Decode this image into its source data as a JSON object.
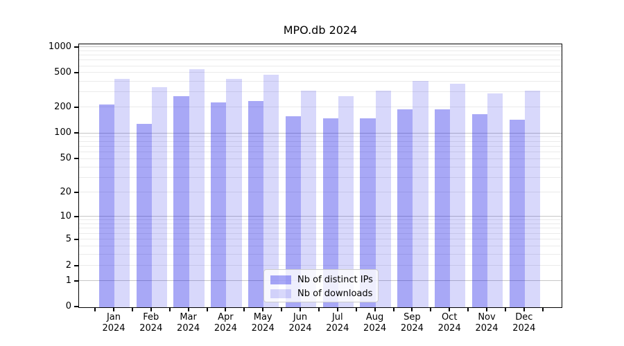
{
  "title": "MPO.db 2024",
  "colors": {
    "ips_bar": "rgba(13,13,230,0.36)",
    "downloads_bar": "rgba(13,13,230,0.16)",
    "grid_major": "#c6c6c6",
    "grid_minor": "#eaeaea",
    "axis": "#000000",
    "legend_border": "#cccccc",
    "legend_bg": "rgba(255,255,255,0.8)"
  },
  "y_axis": {
    "tick_labels": [
      "1000",
      "500",
      "200",
      "100",
      "50",
      "20",
      "10",
      "5",
      "2",
      "1",
      "0"
    ],
    "tick_values": [
      1000,
      500,
      200,
      100,
      50,
      20,
      10,
      5,
      2,
      1,
      0
    ],
    "major_grid_values": [
      1,
      10,
      100,
      1000
    ],
    "minor_grid_values": [
      2,
      3,
      4,
      5,
      6,
      7,
      8,
      9,
      20,
      30,
      40,
      50,
      60,
      70,
      80,
      90,
      200,
      300,
      400,
      500,
      600,
      700,
      800,
      900
    ]
  },
  "x_axis": {
    "months": [
      "Jan",
      "Feb",
      "Mar",
      "Apr",
      "May",
      "Jun",
      "Jul",
      "Aug",
      "Sep",
      "Oct",
      "Nov",
      "Dec"
    ],
    "year": "2024"
  },
  "legend": {
    "items": [
      {
        "label": "Nb of distinct IPs"
      },
      {
        "label": "Nb of downloads"
      }
    ]
  },
  "chart_data": {
    "type": "bar",
    "title": "MPO.db 2024",
    "categories": [
      "Jan 2024",
      "Feb 2024",
      "Mar 2024",
      "Apr 2024",
      "May 2024",
      "Jun 2024",
      "Jul 2024",
      "Aug 2024",
      "Sep 2024",
      "Oct 2024",
      "Nov 2024",
      "Dec 2024"
    ],
    "series": [
      {
        "name": "Nb of distinct IPs",
        "values": [
          220,
          130,
          270,
          230,
          240,
          160,
          152,
          152,
          193,
          190,
          168,
          145
        ]
      },
      {
        "name": "Nb of downloads",
        "values": [
          430,
          343,
          563,
          430,
          478,
          315,
          272,
          315,
          406,
          382,
          291,
          318
        ]
      }
    ],
    "yscale": "log10(1+x)",
    "yticks": [
      0,
      1,
      2,
      5,
      10,
      20,
      50,
      100,
      200,
      500,
      1000
    ],
    "ylim": [
      0,
      1080
    ],
    "xlabel": "",
    "ylabel": "",
    "grid": true,
    "legend_position": "lower center"
  }
}
